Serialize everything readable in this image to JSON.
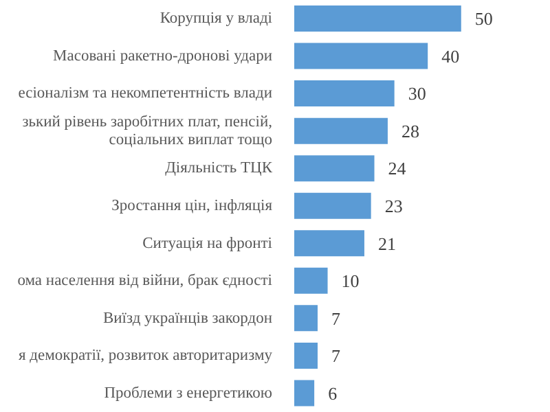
{
  "chart_data": {
    "type": "bar",
    "orientation": "horizontal",
    "categories": [
      "Корупція у владі",
      "Масовані ракетно-дронові удари",
      "есіоналізм та некомпетентність влади",
      "зький рівень заробітних плат, пенсій,\nсоціальних виплат тощо",
      "Діяльність ТЦК",
      "Зростання цін, інфляція",
      "Ситуація на фронті",
      "ома населення від війни, брак єдності",
      "Виїзд українців закордон",
      "я демократії, розвиток авторитаризму",
      "Проблеми з енергетикою"
    ],
    "values": [
      50,
      40,
      30,
      28,
      24,
      23,
      21,
      10,
      7,
      7,
      6
    ],
    "color": "#5b9bd5",
    "data_labels": true,
    "grid": false,
    "legend": false
  }
}
